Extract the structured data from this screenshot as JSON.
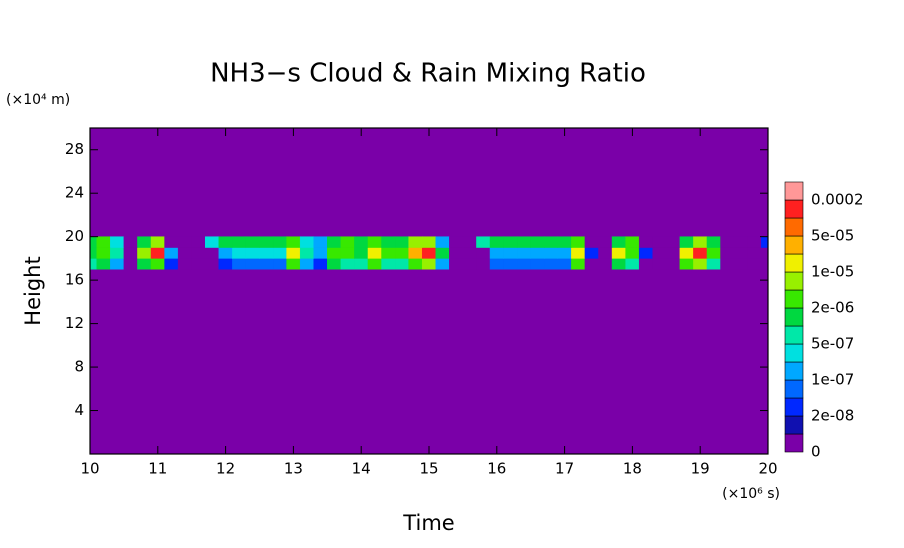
{
  "chart_data": {
    "type": "contour",
    "title": "NH3−s Cloud & Rain Mixing Ratio",
    "x_label": "Time",
    "y_label": "Height",
    "x_unit": "(×10⁶ s)",
    "y_unit": "(×10⁴ m)",
    "xlim": [
      10,
      20
    ],
    "ylim": [
      0,
      30
    ],
    "xticks": [
      10,
      11,
      12,
      13,
      14,
      15,
      16,
      17,
      18,
      19,
      20
    ],
    "yticks": [
      4,
      8,
      12,
      16,
      20,
      24,
      28
    ],
    "levels": [
      0,
      {
        "value": 2e-08,
        "label": "2e-08"
      },
      {
        "value": 1e-07,
        "label": "1e-07"
      },
      {
        "value": 5e-07,
        "label": "5e-07"
      },
      {
        "value": 2e-06,
        "label": "2e-06"
      },
      {
        "value": 1e-05,
        "label": "1e-05"
      },
      {
        "value": 5e-05,
        "label": "5e-05"
      },
      0.0002
    ],
    "colors": [
      "#7a00a8",
      "#1010b0",
      "#0028ff",
      "#0068ff",
      "#00a8ff",
      "#00e0e0",
      "#00e8a8",
      "#00d840",
      "#38e800",
      "#98f000",
      "#f0f000",
      "#ffb000",
      "#ff6a00",
      "#ff2020",
      "#ff9898"
    ],
    "x": [
      10.0,
      10.2,
      10.4,
      10.6,
      10.8,
      11.0,
      11.2,
      11.4,
      11.6,
      11.8,
      12.0,
      12.2,
      12.4,
      12.6,
      12.8,
      13.0,
      13.2,
      13.4,
      13.6,
      13.8,
      14.0,
      14.2,
      14.4,
      14.6,
      14.8,
      15.0,
      15.2,
      15.4,
      15.6,
      15.8,
      16.0,
      16.2,
      16.4,
      16.6,
      16.8,
      17.0,
      17.2,
      17.4,
      17.6,
      17.8,
      18.0,
      18.2,
      18.4,
      18.6,
      18.8,
      19.0,
      19.2,
      19.4,
      19.6,
      19.8,
      20.0
    ],
    "y": [
      17.5,
      18.5,
      19.5
    ],
    "z": [
      [
        5e-07,
        1e-06,
        2e-07,
        0,
        1e-06,
        2e-06,
        3e-08,
        0,
        0,
        0,
        3e-08,
        5e-08,
        5e-08,
        5e-08,
        5e-08,
        3e-06,
        2e-07,
        3e-08,
        1e-06,
        5e-07,
        5e-07,
        2e-06,
        5e-07,
        5e-07,
        2e-06,
        5e-06,
        2e-07,
        0,
        0,
        0,
        5e-08,
        5e-08,
        5e-08,
        5e-08,
        5e-08,
        5e-08,
        2e-06,
        0,
        0,
        1e-06,
        5e-07,
        0,
        0,
        0,
        2e-06,
        5e-06,
        5e-07,
        0,
        0,
        0,
        0
      ],
      [
        1e-06,
        3e-06,
        5e-07,
        0,
        5e-06,
        0.0001,
        2e-07,
        0,
        0,
        0,
        2e-07,
        3e-07,
        3e-07,
        3e-07,
        3e-07,
        1e-05,
        5e-07,
        2e-07,
        3e-06,
        3e-06,
        1e-06,
        1e-05,
        3e-06,
        2e-06,
        3e-05,
        0.0001,
        1e-06,
        0,
        0,
        0,
        2e-07,
        2e-07,
        2e-07,
        2e-07,
        2e-07,
        2e-07,
        2e-05,
        3e-08,
        0,
        1e-05,
        3e-06,
        3e-08,
        0,
        0,
        1e-05,
        0.0001,
        3e-06,
        0,
        0,
        0,
        0
      ],
      [
        1e-06,
        2e-06,
        3e-07,
        0,
        1e-06,
        5e-06,
        0,
        0,
        0,
        3e-07,
        1e-06,
        1e-06,
        1e-06,
        1e-06,
        1e-06,
        2e-06,
        3e-07,
        2e-07,
        1e-06,
        2e-06,
        1e-06,
        3e-06,
        1e-06,
        1e-06,
        5e-06,
        8e-06,
        2e-07,
        0,
        0,
        5e-07,
        1e-06,
        1e-06,
        1e-06,
        1e-06,
        1e-06,
        1e-06,
        3e-06,
        0,
        0,
        1e-06,
        2e-06,
        0,
        0,
        0,
        1e-06,
        5e-06,
        1e-06,
        0,
        0,
        0,
        3e-08
      ]
    ]
  }
}
